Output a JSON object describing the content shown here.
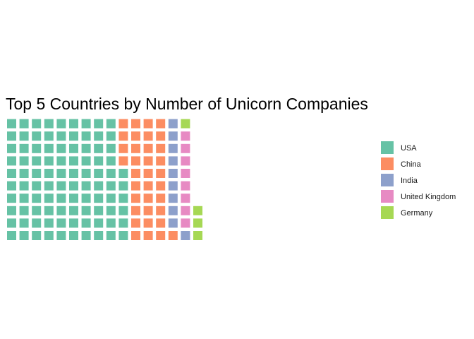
{
  "chart_data": {
    "type": "waffle",
    "title": "Top 5 Countries by Number of Unicorn Companies",
    "categories": [
      "USA",
      "China",
      "India",
      "United Kingdom",
      "Germany"
    ],
    "values": [
      96,
      35,
      10,
      8,
      4
    ],
    "colors": [
      "#66c2a5",
      "#fc8d62",
      "#8da0cb",
      "#e78ac3",
      "#a6d854"
    ],
    "rows": 10,
    "legend_position": "right",
    "grid": false
  }
}
